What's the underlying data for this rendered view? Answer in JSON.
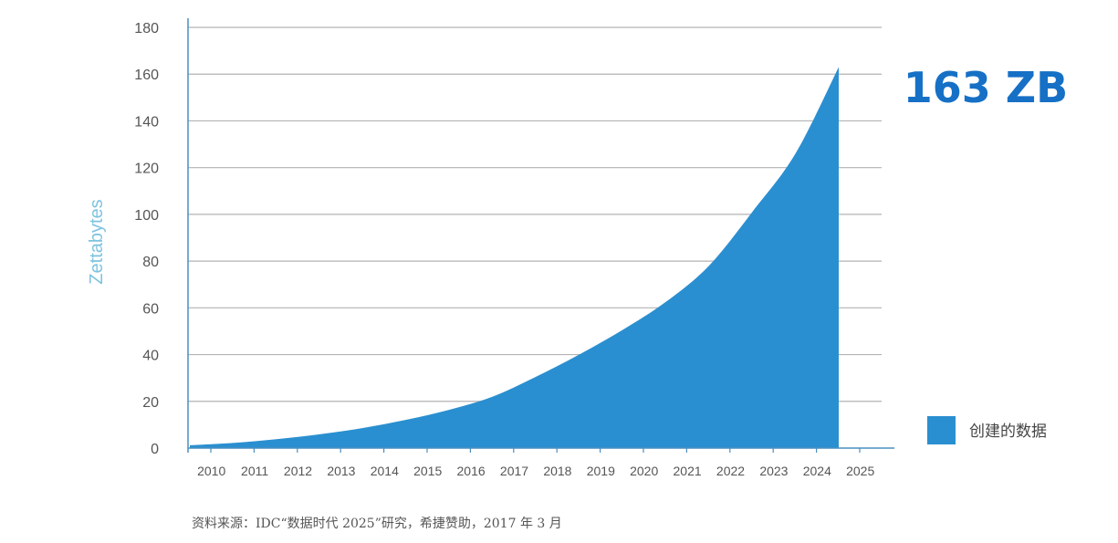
{
  "chart_data": {
    "type": "area",
    "ylabel": "Zettabytes",
    "xlabel": "",
    "ylim": [
      0,
      180
    ],
    "y_ticks": [
      0,
      20,
      40,
      60,
      80,
      100,
      120,
      140,
      160,
      180
    ],
    "categories": [
      "2010",
      "2011",
      "2012",
      "2013",
      "2014",
      "2015",
      "2016",
      "2017",
      "2018",
      "2019",
      "2020",
      "2021",
      "2022",
      "2023",
      "2024",
      "2025"
    ],
    "series": [
      {
        "name": "创建的数据",
        "values": [
          1.2,
          2.2,
          3.8,
          5.9,
          8.6,
          12.1,
          16.4,
          22.0,
          30.5,
          40.0,
          50.5,
          62.5,
          78.0,
          101.0,
          126.0,
          163.0
        ],
        "color": "#2a8fd0"
      }
    ],
    "annotations": [
      {
        "text": "163 ZB",
        "color": "#1670c5"
      }
    ],
    "grid": true,
    "legend": "right",
    "colors": {
      "grid": "#b3b3b3",
      "axis": "#4a8fc0",
      "ylabel": "#7ec3e0"
    }
  },
  "source": "资料来源：IDC“数据时代 2025”研究，希捷赞助，2017 年 3 月"
}
